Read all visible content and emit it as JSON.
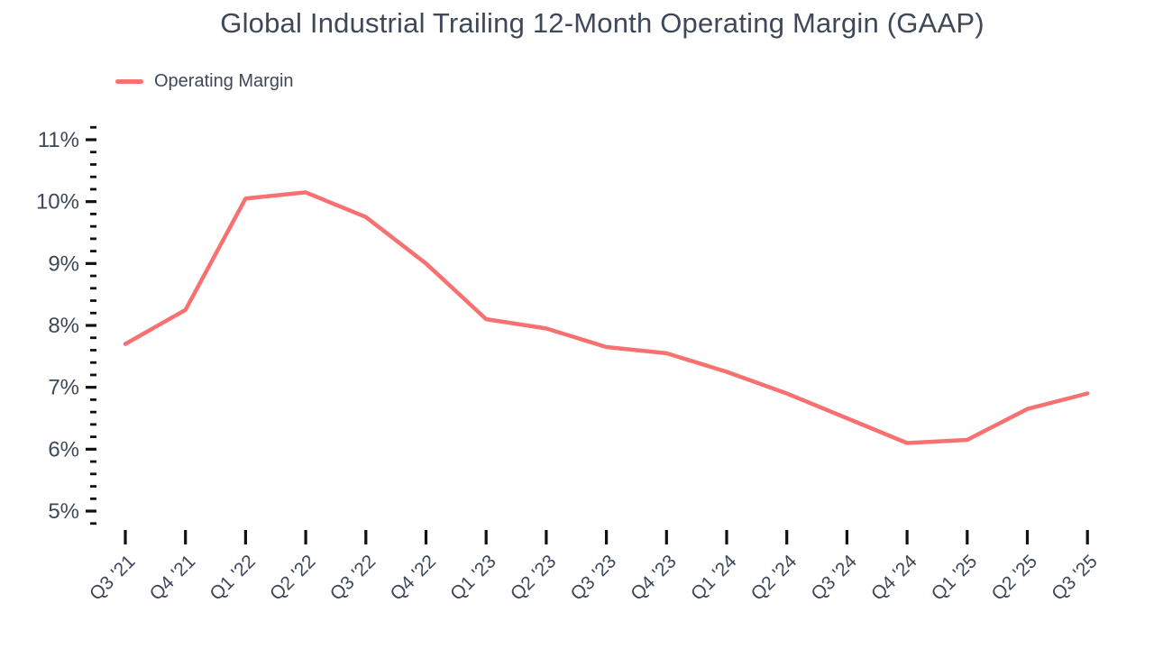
{
  "chart_data": {
    "type": "line",
    "title": "Global Industrial Trailing 12-Month Operating Margin (GAAP)",
    "legend": [
      "Operating Margin"
    ],
    "categories": [
      "Q3 '21",
      "Q4 '21",
      "Q1 '22",
      "Q2 '22",
      "Q3 '22",
      "Q4 '22",
      "Q1 '23",
      "Q2 '23",
      "Q3 '23",
      "Q4 '23",
      "Q1 '24",
      "Q2 '24",
      "Q3 '24",
      "Q4 '24",
      "Q1 '25",
      "Q2 '25",
      "Q3 '25"
    ],
    "series": [
      {
        "name": "Operating Margin",
        "values": [
          7.7,
          8.25,
          10.05,
          10.15,
          9.75,
          9.0,
          8.1,
          7.95,
          7.65,
          7.55,
          7.25,
          6.9,
          6.5,
          6.1,
          6.15,
          6.65,
          6.9
        ]
      }
    ],
    "xlabel": "",
    "ylabel": "",
    "ylim": [
      4.8,
      11.2
    ],
    "y_major_ticks": [
      5,
      6,
      7,
      8,
      9,
      10,
      11
    ],
    "y_tick_labels": [
      "5%",
      "6%",
      "7%",
      "8%",
      "9%",
      "10%",
      "11%"
    ],
    "y_minor_step": 0.2,
    "grid": false,
    "legend_position": "top-left",
    "x_tick_rotation_deg": -45,
    "colors": {
      "line": "#f87171",
      "text": "#3d4859",
      "tick": "#111111",
      "background": "#ffffff"
    }
  }
}
